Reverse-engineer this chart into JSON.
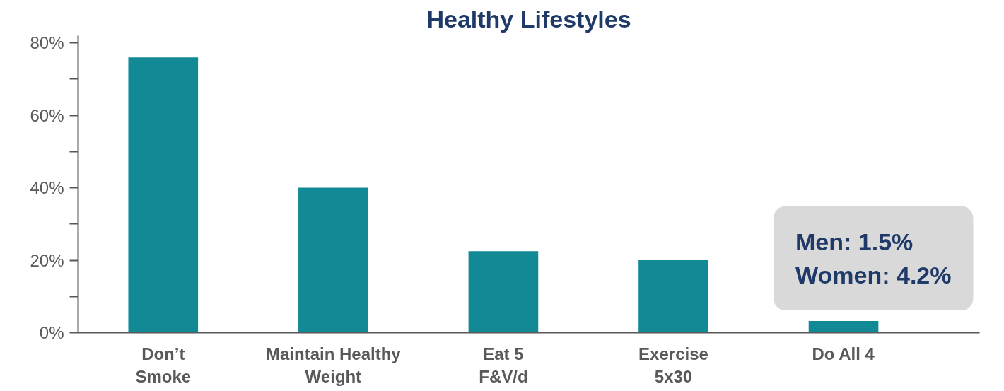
{
  "chart_data": {
    "type": "bar",
    "title": "Healthy Lifestyles",
    "categories": [
      "Don’t\nSmoke",
      "Maintain Healthy\nWeight",
      "Eat 5\nF&V/d",
      "Exercise\n5x30",
      "Do All 4"
    ],
    "values": [
      76,
      40,
      22.5,
      20,
      3.2
    ],
    "color": "#128a96",
    "ylim": [
      0,
      82
    ],
    "yticks": [
      {
        "value": 0,
        "label": "0%"
      },
      {
        "value": 10,
        "label": null
      },
      {
        "value": 20,
        "label": "20%"
      },
      {
        "value": 30,
        "label": null
      },
      {
        "value": 40,
        "label": "40%"
      },
      {
        "value": 50,
        "label": null
      },
      {
        "value": 60,
        "label": "60%"
      },
      {
        "value": 70,
        "label": null
      },
      {
        "value": 80,
        "label": "80%"
      }
    ],
    "annotations": [
      {
        "text": "Men: 1.5%\nWomen: 4.2%",
        "x": "Do All 4",
        "y": 3.2
      }
    ]
  }
}
